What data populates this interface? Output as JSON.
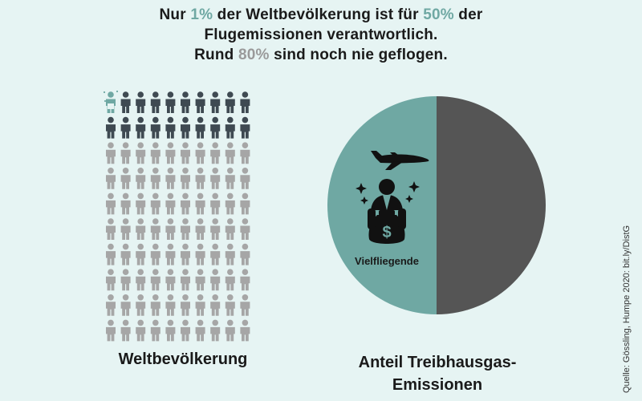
{
  "title": {
    "line1": {
      "pre": "Nur ",
      "hl1": "1%",
      "mid": " der Weltbevölkerung ist für ",
      "hl2": "50%",
      "post": " der"
    },
    "line2": "Flugemissionen verantwortlich.",
    "line3": {
      "pre": "Rund ",
      "hl": "80%",
      "post": " sind noch nie geflogen."
    }
  },
  "left_label": "Weltbevölkerung",
  "right_label_line1": "Anteil Treibhausgas-",
  "right_label_line2": "Emissionen",
  "pie_slice_label": "Vielfliegende",
  "source": "Quelle: Gössling, Humpe 2020: bit.ly/DistG",
  "colors": {
    "background": "#e6f4f3",
    "frequent_flyers": "#6fa8a3",
    "flown": "#3f4a52",
    "never_flown": "#a6a6a6",
    "other_emissions": "#555555"
  },
  "chart_data": [
    {
      "type": "pictogram",
      "total_icons": 100,
      "groups": [
        {
          "share_percent": 1,
          "icons": 1,
          "color": "#6fa8a3"
        },
        {
          "share_percent": 19,
          "icons": 19,
          "color": "#3f4a52"
        },
        {
          "share_percent": 80,
          "icons": 80,
          "color": "#a6a6a6"
        }
      ]
    },
    {
      "type": "pie",
      "slices": [
        {
          "label": "Vielfliegende",
          "value": 50,
          "color": "#6fa8a3"
        },
        {
          "label": "",
          "value": 50,
          "color": "#555555"
        }
      ]
    }
  ]
}
